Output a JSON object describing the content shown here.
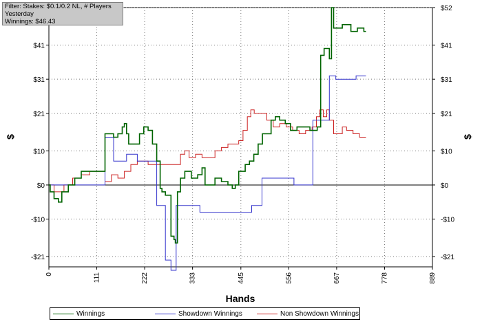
{
  "filter_box": {
    "line1": "Filter: Stakes: $0.1/0.2 NL, # Players",
    "line2": "Yesterday",
    "line3": "Winnings: $46.43"
  },
  "chart_data": {
    "type": "line",
    "xlabel": "Hands",
    "ylabel": "$",
    "ylabel_right": "$",
    "xlim": [
      0,
      889
    ],
    "ylim": [
      -24,
      52
    ],
    "x_ticks": [
      0,
      111,
      222,
      333,
      445,
      556,
      667,
      778,
      889
    ],
    "y_ticks": [
      -21,
      -10,
      0,
      10,
      21,
      31,
      41,
      52
    ],
    "y_tick_labels": [
      "-$21",
      "-$10",
      "$0",
      "$10",
      "$21",
      "$31",
      "$41",
      "$52"
    ],
    "grid": true,
    "legend_position": "bottom",
    "series": [
      {
        "name": "Winnings",
        "color": "#006400",
        "points": [
          [
            0,
            0
          ],
          [
            3,
            -2
          ],
          [
            12,
            -4
          ],
          [
            22,
            -5
          ],
          [
            30,
            -2
          ],
          [
            45,
            0
          ],
          [
            60,
            2
          ],
          [
            75,
            4
          ],
          [
            95,
            4
          ],
          [
            112,
            4
          ],
          [
            120,
            4
          ],
          [
            128,
            4
          ],
          [
            130,
            15
          ],
          [
            140,
            15
          ],
          [
            150,
            14
          ],
          [
            160,
            15
          ],
          [
            170,
            17
          ],
          [
            175,
            18
          ],
          [
            180,
            15
          ],
          [
            185,
            12
          ],
          [
            195,
            12
          ],
          [
            210,
            15
          ],
          [
            220,
            17
          ],
          [
            230,
            16
          ],
          [
            240,
            12
          ],
          [
            250,
            7
          ],
          [
            258,
            -1
          ],
          [
            262,
            -2
          ],
          [
            270,
            -3
          ],
          [
            283,
            -15
          ],
          [
            290,
            -16
          ],
          [
            293,
            -17
          ],
          [
            298,
            -2
          ],
          [
            305,
            2
          ],
          [
            315,
            4
          ],
          [
            325,
            4
          ],
          [
            330,
            2
          ],
          [
            345,
            3
          ],
          [
            355,
            5
          ],
          [
            362,
            0
          ],
          [
            372,
            0
          ],
          [
            385,
            2
          ],
          [
            400,
            1
          ],
          [
            415,
            0
          ],
          [
            425,
            -1
          ],
          [
            432,
            0
          ],
          [
            440,
            4
          ],
          [
            455,
            6
          ],
          [
            465,
            7
          ],
          [
            475,
            9
          ],
          [
            485,
            12
          ],
          [
            495,
            15
          ],
          [
            505,
            15
          ],
          [
            515,
            19
          ],
          [
            525,
            20
          ],
          [
            535,
            19
          ],
          [
            548,
            18
          ],
          [
            560,
            16
          ],
          [
            575,
            17
          ],
          [
            590,
            17
          ],
          [
            605,
            16
          ],
          [
            615,
            16
          ],
          [
            622,
            17
          ],
          [
            630,
            38
          ],
          [
            638,
            40
          ],
          [
            645,
            40
          ],
          [
            650,
            37
          ],
          [
            655,
            52
          ],
          [
            660,
            46
          ],
          [
            670,
            46
          ],
          [
            680,
            47
          ],
          [
            690,
            47
          ],
          [
            700,
            45
          ],
          [
            715,
            46
          ],
          [
            730,
            45
          ],
          [
            735,
            45
          ]
        ]
      },
      {
        "name": "Showdown Winnings",
        "color": "#3333cc",
        "points": [
          [
            0,
            0
          ],
          [
            112,
            0
          ],
          [
            130,
            14
          ],
          [
            140,
            14
          ],
          [
            145,
            14
          ],
          [
            150,
            7
          ],
          [
            175,
            7
          ],
          [
            180,
            9
          ],
          [
            200,
            9
          ],
          [
            205,
            7
          ],
          [
            248,
            7
          ],
          [
            250,
            -6
          ],
          [
            265,
            -6
          ],
          [
            270,
            -22
          ],
          [
            280,
            -22
          ],
          [
            283,
            -25
          ],
          [
            292,
            -25
          ],
          [
            295,
            -6
          ],
          [
            345,
            -6
          ],
          [
            350,
            -8
          ],
          [
            460,
            -8
          ],
          [
            470,
            -6
          ],
          [
            490,
            -6
          ],
          [
            494,
            2
          ],
          [
            565,
            2
          ],
          [
            568,
            0
          ],
          [
            610,
            0
          ],
          [
            612,
            19
          ],
          [
            648,
            19
          ],
          [
            650,
            32
          ],
          [
            665,
            31
          ],
          [
            710,
            31
          ],
          [
            712,
            32
          ],
          [
            735,
            32
          ]
        ]
      },
      {
        "name": "Non Showdown Winnings",
        "color": "#cc2222",
        "points": [
          [
            0,
            0
          ],
          [
            12,
            -2
          ],
          [
            35,
            0
          ],
          [
            55,
            2
          ],
          [
            75,
            3
          ],
          [
            95,
            4
          ],
          [
            112,
            4
          ],
          [
            130,
            1
          ],
          [
            145,
            3
          ],
          [
            160,
            2
          ],
          [
            175,
            4
          ],
          [
            190,
            6
          ],
          [
            205,
            7
          ],
          [
            230,
            6
          ],
          [
            250,
            6
          ],
          [
            265,
            6
          ],
          [
            280,
            6
          ],
          [
            295,
            6
          ],
          [
            305,
            9
          ],
          [
            315,
            10
          ],
          [
            325,
            8
          ],
          [
            340,
            9
          ],
          [
            355,
            8
          ],
          [
            370,
            8
          ],
          [
            385,
            10
          ],
          [
            400,
            11
          ],
          [
            415,
            12
          ],
          [
            425,
            12
          ],
          [
            440,
            13
          ],
          [
            450,
            16
          ],
          [
            460,
            20
          ],
          [
            468,
            22
          ],
          [
            476,
            21
          ],
          [
            490,
            21
          ],
          [
            505,
            19
          ],
          [
            520,
            17
          ],
          [
            535,
            18
          ],
          [
            550,
            17
          ],
          [
            565,
            16
          ],
          [
            580,
            15
          ],
          [
            595,
            16
          ],
          [
            610,
            17
          ],
          [
            620,
            20
          ],
          [
            628,
            22
          ],
          [
            636,
            20
          ],
          [
            644,
            22
          ],
          [
            650,
            19
          ],
          [
            660,
            15
          ],
          [
            670,
            15
          ],
          [
            680,
            17
          ],
          [
            690,
            16
          ],
          [
            705,
            15
          ],
          [
            720,
            14
          ],
          [
            735,
            14
          ]
        ]
      }
    ]
  }
}
